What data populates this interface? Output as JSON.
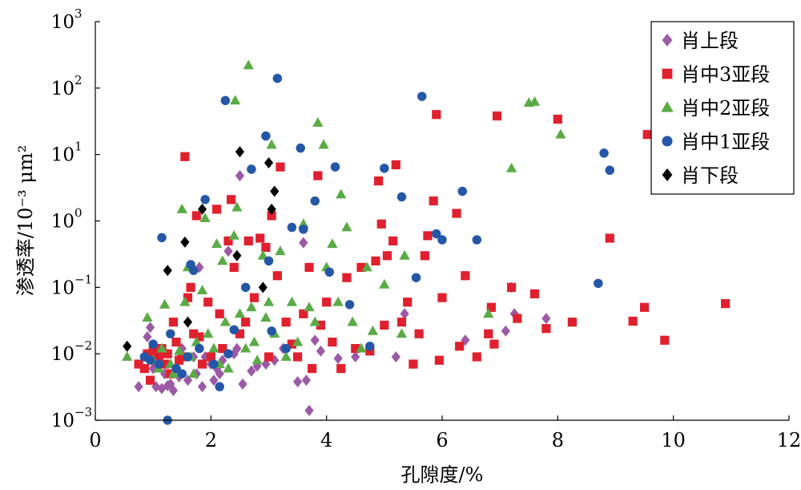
{
  "chart_data": {
    "type": "scatter",
    "xlabel": "孔隙度/%",
    "ylabel": "渗透率/10⁻³ μm²",
    "xlim": [
      0,
      12
    ],
    "ylim": [
      0.001,
      1000
    ],
    "y_scale": "log",
    "grid": false,
    "legend_position": "top-right",
    "x_ticks": [
      "0",
      "2",
      "4",
      "6",
      "8",
      "10",
      "12"
    ],
    "y_ticks": [
      {
        "base": "10",
        "exp": "−3",
        "value": 0.001
      },
      {
        "base": "10",
        "exp": "−2",
        "value": 0.01
      },
      {
        "base": "10",
        "exp": "−1",
        "value": 0.1
      },
      {
        "base": "10",
        "exp": "0",
        "value": 1
      },
      {
        "base": "10",
        "exp": "1",
        "value": 10
      },
      {
        "base": "10",
        "exp": "2",
        "value": 100
      },
      {
        "base": "10",
        "exp": "3",
        "value": 1000
      }
    ],
    "series": [
      {
        "name": "肖上段",
        "marker": "diamond",
        "color": "#9b59a6",
        "points": [
          [
            0.75,
            0.0032
          ],
          [
            0.9,
            0.018
          ],
          [
            0.95,
            0.025
          ],
          [
            1.0,
            0.006
          ],
          [
            1.05,
            0.0032
          ],
          [
            1.1,
            0.009
          ],
          [
            1.15,
            0.003
          ],
          [
            1.2,
            0.005
          ],
          [
            1.25,
            0.0033
          ],
          [
            1.3,
            0.0035
          ],
          [
            1.35,
            0.0028
          ],
          [
            1.4,
            0.006
          ],
          [
            1.45,
            0.0045
          ],
          [
            1.5,
            0.012
          ],
          [
            1.6,
            0.004
          ],
          [
            1.7,
            0.009
          ],
          [
            1.75,
            0.005
          ],
          [
            1.8,
            0.2
          ],
          [
            1.85,
            0.0032
          ],
          [
            1.9,
            0.009
          ],
          [
            2.0,
            0.007
          ],
          [
            2.05,
            0.004
          ],
          [
            2.1,
            0.006
          ],
          [
            2.15,
            0.005
          ],
          [
            2.2,
            0.008
          ],
          [
            2.3,
            0.35
          ],
          [
            2.4,
            0.01
          ],
          [
            2.45,
            0.012
          ],
          [
            2.5,
            4.8
          ],
          [
            2.55,
            0.0035
          ],
          [
            2.7,
            0.0055
          ],
          [
            2.8,
            0.0065
          ],
          [
            2.95,
            0.007
          ],
          [
            3.1,
            0.008
          ],
          [
            3.25,
            0.012
          ],
          [
            3.5,
            0.0038
          ],
          [
            3.6,
            0.47
          ],
          [
            3.65,
            0.004
          ],
          [
            3.7,
            0.0014
          ],
          [
            3.8,
            0.016
          ],
          [
            3.9,
            0.011
          ],
          [
            4.2,
            0.0085
          ],
          [
            4.5,
            0.009
          ],
          [
            5.2,
            0.009
          ],
          [
            5.35,
            0.04
          ],
          [
            6.4,
            0.016
          ],
          [
            7.1,
            0.022
          ],
          [
            7.2,
            0.1
          ],
          [
            7.25,
            0.04
          ],
          [
            7.8,
            0.034
          ]
        ]
      },
      {
        "name": "肖中3亚段",
        "marker": "square",
        "color": "#e0202e",
        "points": [
          [
            0.75,
            0.007
          ],
          [
            0.85,
            0.006
          ],
          [
            0.9,
            0.01
          ],
          [
            0.95,
            0.004
          ],
          [
            1.0,
            0.011
          ],
          [
            1.05,
            0.008
          ],
          [
            1.1,
            0.009
          ],
          [
            1.15,
            0.012
          ],
          [
            1.2,
            0.007
          ],
          [
            1.25,
            0.01
          ],
          [
            1.3,
            0.005
          ],
          [
            1.35,
            0.03
          ],
          [
            1.4,
            0.015
          ],
          [
            1.45,
            0.008
          ],
          [
            1.5,
            0.009
          ],
          [
            1.55,
            9.3
          ],
          [
            1.6,
            0.07
          ],
          [
            1.65,
            0.1
          ],
          [
            1.7,
            0.02
          ],
          [
            1.75,
            1.2
          ],
          [
            1.8,
            0.018
          ],
          [
            1.85,
            0.007
          ],
          [
            1.95,
            0.06
          ],
          [
            2.0,
            0.009
          ],
          [
            2.1,
            1.5
          ],
          [
            2.15,
            0.04
          ],
          [
            2.2,
            0.012
          ],
          [
            2.3,
            0.5
          ],
          [
            2.35,
            2.1
          ],
          [
            2.4,
            0.2
          ],
          [
            2.5,
            0.02
          ],
          [
            2.6,
            0.03
          ],
          [
            2.65,
            0.5
          ],
          [
            2.75,
            0.07
          ],
          [
            2.85,
            0.55
          ],
          [
            2.95,
            0.4
          ],
          [
            3.0,
            0.009
          ],
          [
            3.05,
            1.2
          ],
          [
            3.15,
            0.15
          ],
          [
            3.2,
            6.5
          ],
          [
            3.3,
            0.03
          ],
          [
            3.4,
            0.014
          ],
          [
            3.5,
            0.009
          ],
          [
            3.6,
            0.04
          ],
          [
            3.7,
            0.2
          ],
          [
            3.75,
            0.006
          ],
          [
            3.85,
            4.8
          ],
          [
            3.9,
            0.027
          ],
          [
            4.0,
            0.06
          ],
          [
            4.1,
            0.015
          ],
          [
            4.25,
            0.006
          ],
          [
            4.35,
            0.14
          ],
          [
            4.5,
            0.012
          ],
          [
            4.6,
            0.2
          ],
          [
            4.75,
            0.011
          ],
          [
            4.85,
            0.25
          ],
          [
            4.9,
            4.0
          ],
          [
            4.95,
            0.9
          ],
          [
            5.0,
            0.027
          ],
          [
            5.05,
            0.3
          ],
          [
            5.15,
            0.5
          ],
          [
            5.2,
            7.0
          ],
          [
            5.3,
            0.03
          ],
          [
            5.4,
            0.06
          ],
          [
            5.5,
            0.007
          ],
          [
            5.6,
            0.02
          ],
          [
            5.7,
            0.3
          ],
          [
            5.75,
            0.6
          ],
          [
            5.85,
            2.0
          ],
          [
            5.9,
            40.0
          ],
          [
            5.95,
            0.008
          ],
          [
            6.0,
            0.07
          ],
          [
            6.25,
            1.3
          ],
          [
            6.3,
            0.013
          ],
          [
            6.4,
            0.15
          ],
          [
            6.6,
            0.009
          ],
          [
            6.8,
            0.02
          ],
          [
            6.85,
            0.05
          ],
          [
            6.9,
            0.014
          ],
          [
            6.95,
            38.0
          ],
          [
            7.2,
            0.1
          ],
          [
            7.3,
            0.034
          ],
          [
            7.6,
            0.08
          ],
          [
            7.8,
            0.024
          ],
          [
            8.0,
            34.0
          ],
          [
            8.25,
            0.03
          ],
          [
            8.9,
            0.55
          ],
          [
            9.3,
            0.031
          ],
          [
            9.5,
            0.05
          ],
          [
            9.55,
            20.0
          ],
          [
            9.85,
            0.016
          ],
          [
            10.9,
            0.057
          ]
        ]
      },
      {
        "name": "肖中2亚段",
        "marker": "triangle",
        "color": "#5aab46",
        "points": [
          [
            0.55,
            0.009
          ],
          [
            0.9,
            0.035
          ],
          [
            1.0,
            0.008
          ],
          [
            1.1,
            0.006
          ],
          [
            1.15,
            0.012
          ],
          [
            1.2,
            0.055
          ],
          [
            1.3,
            0.007
          ],
          [
            1.35,
            0.005
          ],
          [
            1.45,
            0.011
          ],
          [
            1.5,
            1.5
          ],
          [
            1.55,
            0.06
          ],
          [
            1.6,
            0.2
          ],
          [
            1.65,
            0.009
          ],
          [
            1.7,
            0.005
          ],
          [
            1.75,
            0.015
          ],
          [
            1.85,
            0.09
          ],
          [
            1.9,
            1.1
          ],
          [
            1.95,
            0.02
          ],
          [
            2.05,
            0.012
          ],
          [
            2.1,
            0.45
          ],
          [
            2.15,
            0.007
          ],
          [
            2.2,
            0.25
          ],
          [
            2.25,
            0.03
          ],
          [
            2.3,
            0.006
          ],
          [
            2.4,
            0.6
          ],
          [
            2.42,
            65.0
          ],
          [
            2.45,
            1.6
          ],
          [
            2.5,
            0.04
          ],
          [
            2.6,
            0.012
          ],
          [
            2.65,
            220.0
          ],
          [
            2.7,
            0.05
          ],
          [
            2.75,
            0.015
          ],
          [
            2.8,
            0.008
          ],
          [
            2.9,
            0.3
          ],
          [
            2.95,
            0.035
          ],
          [
            3.0,
            0.06
          ],
          [
            3.05,
            14.0
          ],
          [
            3.1,
            0.02
          ],
          [
            3.2,
            0.35
          ],
          [
            3.3,
            0.009
          ],
          [
            3.4,
            0.06
          ],
          [
            3.5,
            0.015
          ],
          [
            3.6,
            0.9
          ],
          [
            3.7,
            0.05
          ],
          [
            3.8,
            0.03
          ],
          [
            3.85,
            30.0
          ],
          [
            3.95,
            14.0
          ],
          [
            4.0,
            0.2
          ],
          [
            4.1,
            0.45
          ],
          [
            4.2,
            0.06
          ],
          [
            4.25,
            2.5
          ],
          [
            4.35,
            0.8
          ],
          [
            4.45,
            0.03
          ],
          [
            4.6,
            0.012
          ],
          [
            4.7,
            0.2
          ],
          [
            4.8,
            0.022
          ],
          [
            5.0,
            0.11
          ],
          [
            5.3,
            0.02
          ],
          [
            5.35,
            0.3
          ],
          [
            6.8,
            0.04
          ],
          [
            7.2,
            6.2
          ],
          [
            7.5,
            60.0
          ],
          [
            7.6,
            62.0
          ],
          [
            8.05,
            20.0
          ]
        ]
      },
      {
        "name": "肖中1亚段",
        "marker": "circle",
        "color": "#2457a6",
        "points": [
          [
            0.85,
            0.009
          ],
          [
            0.95,
            0.008
          ],
          [
            1.0,
            0.014
          ],
          [
            1.1,
            0.007
          ],
          [
            1.15,
            0.56
          ],
          [
            1.25,
            0.001
          ],
          [
            1.3,
            0.02
          ],
          [
            1.4,
            0.006
          ],
          [
            1.5,
            0.005
          ],
          [
            1.6,
            0.009
          ],
          [
            1.65,
            0.22
          ],
          [
            1.7,
            0.18
          ],
          [
            1.8,
            0.012
          ],
          [
            1.9,
            2.1
          ],
          [
            2.05,
            0.007
          ],
          [
            2.15,
            0.0032
          ],
          [
            2.25,
            65.0
          ],
          [
            2.3,
            0.01
          ],
          [
            2.4,
            0.023
          ],
          [
            2.6,
            0.1
          ],
          [
            2.7,
            6.0
          ],
          [
            2.95,
            19.0
          ],
          [
            3.0,
            0.25
          ],
          [
            3.05,
            0.022
          ],
          [
            3.15,
            140.0
          ],
          [
            3.3,
            0.012
          ],
          [
            3.4,
            0.8
          ],
          [
            3.55,
            12.5
          ],
          [
            3.6,
            0.75
          ],
          [
            3.8,
            2.0
          ],
          [
            4.05,
            0.17
          ],
          [
            4.15,
            6.5
          ],
          [
            4.4,
            0.055
          ],
          [
            4.75,
            0.013
          ],
          [
            5.0,
            6.2
          ],
          [
            5.3,
            2.3
          ],
          [
            5.55,
            0.14
          ],
          [
            5.65,
            75.0
          ],
          [
            5.9,
            0.64
          ],
          [
            6.0,
            0.52
          ],
          [
            6.35,
            2.8
          ],
          [
            6.6,
            0.52
          ],
          [
            8.7,
            0.115
          ],
          [
            8.8,
            10.5
          ],
          [
            8.9,
            5.8
          ]
        ]
      },
      {
        "name": "肖下段",
        "marker": "diamond",
        "color": "#000000",
        "points": [
          [
            0.55,
            0.013
          ],
          [
            1.25,
            0.18
          ],
          [
            1.55,
            0.48
          ],
          [
            1.6,
            0.03
          ],
          [
            1.85,
            1.5
          ],
          [
            2.45,
            0.3
          ],
          [
            2.5,
            11.0
          ],
          [
            3.0,
            7.5
          ],
          [
            3.05,
            1.5
          ],
          [
            3.1,
            2.8
          ],
          [
            2.9,
            0.1
          ]
        ]
      }
    ]
  }
}
